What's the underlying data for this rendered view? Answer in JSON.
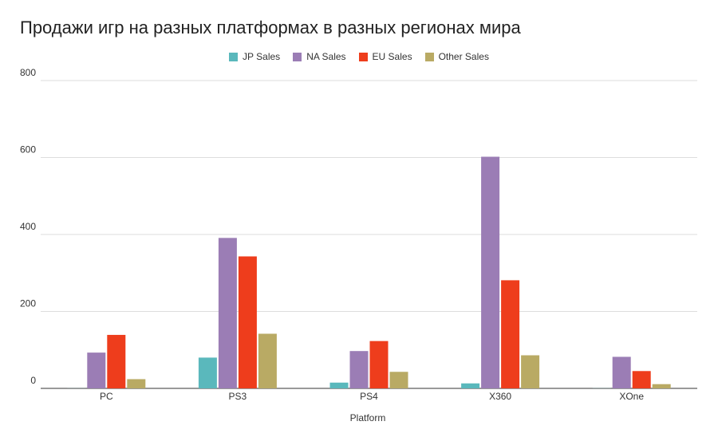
{
  "chart_data": {
    "type": "bar",
    "title": "Продажи игр на разных платформах в разных регионах мира",
    "xlabel": "Platform",
    "ylabel": "",
    "categories": [
      "PC",
      "PS3",
      "PS4",
      "X360",
      "XOne"
    ],
    "series": [
      {
        "name": "JP Sales",
        "color": "#5ab8bc",
        "values": [
          0.2,
          80,
          15,
          13,
          0.3
        ]
      },
      {
        "name": "NA Sales",
        "color": "#9b7db5",
        "values": [
          93,
          391,
          97,
          602,
          82
        ]
      },
      {
        "name": "EU Sales",
        "color": "#ee3d1c",
        "values": [
          139,
          343,
          123,
          281,
          45
        ]
      },
      {
        "name": "Other Sales",
        "color": "#b9aa64",
        "values": [
          24,
          142,
          43,
          86,
          11
        ]
      }
    ],
    "ylim": [
      0,
      800
    ],
    "yticks": [
      0,
      200,
      400,
      600,
      800
    ],
    "grid": true,
    "legend_position": "top-center"
  }
}
